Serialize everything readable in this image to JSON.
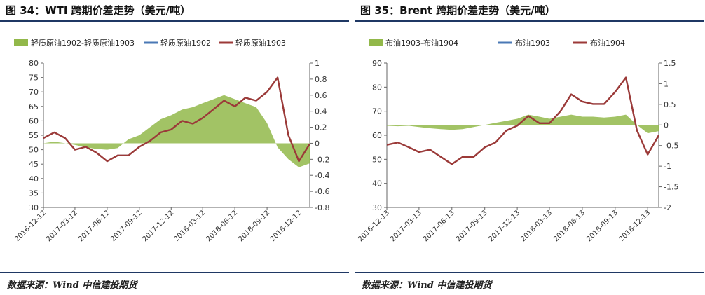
{
  "charts": [
    {
      "title": "图 34：WTI 跨期价差走势（美元/吨）",
      "source": "数据来源：Wind 中信建投期货",
      "colors": {
        "spread": "#92b84a",
        "near": "#4a78b5",
        "far": "#9c3a38"
      },
      "chart_data": {
        "type": "line",
        "x_dates": [
          "2016-12-12",
          "2017-01-12",
          "2017-02-12",
          "2017-03-12",
          "2017-04-12",
          "2017-05-12",
          "2017-06-12",
          "2017-07-12",
          "2017-08-12",
          "2017-09-12",
          "2017-10-12",
          "2017-11-12",
          "2017-12-12",
          "2018-01-12",
          "2018-02-12",
          "2018-03-12",
          "2018-04-12",
          "2018-05-12",
          "2018-06-12",
          "2018-07-12",
          "2018-08-12",
          "2018-09-12",
          "2018-10-12",
          "2018-11-12",
          "2018-12-12",
          "2019-01-12"
        ],
        "x_tick_labels": [
          "2016-12-12",
          "2017-03-12",
          "2017-06-12",
          "2017-09-12",
          "2017-12-12",
          "2018-03-12",
          "2018-06-12",
          "2018-09-12",
          "2018-12-12"
        ],
        "left_axis": {
          "ticks": [
            "30",
            "35",
            "40",
            "45",
            "50",
            "55",
            "60",
            "65",
            "70",
            "75",
            "80"
          ],
          "ylim": [
            30,
            80
          ]
        },
        "right_axis": {
          "ticks": [
            "-0.8",
            "-0.6",
            "-0.4",
            "-0.2",
            "0",
            "0.2",
            "0.4",
            "0.6",
            "0.8",
            "1"
          ],
          "ylim": [
            -0.8,
            1.0
          ]
        },
        "series": [
          {
            "name": "轻质原油1902-轻质原油1903",
            "kind": "area",
            "axis": "right",
            "values": [
              0.0,
              0.02,
              0.0,
              -0.02,
              -0.05,
              -0.07,
              -0.08,
              -0.06,
              0.05,
              0.1,
              0.2,
              0.3,
              0.35,
              0.42,
              0.45,
              0.5,
              0.55,
              0.6,
              0.55,
              0.5,
              0.45,
              0.25,
              -0.05,
              -0.2,
              -0.3,
              -0.25
            ]
          },
          {
            "name": "轻质原油1902",
            "kind": "line",
            "axis": "left",
            "values": [
              54,
              56,
              54,
              50,
              51,
              49,
              46,
              48,
              48,
              51,
              53,
              56,
              57,
              60,
              59,
              61,
              64,
              67,
              65,
              68,
              67,
              70,
              75,
              55,
              46,
              52
            ]
          },
          {
            "name": "轻质原油1903",
            "kind": "line",
            "axis": "left",
            "values": [
              54,
              56,
              54,
              50,
              51,
              49,
              46,
              48,
              48,
              51,
              53,
              56,
              57,
              60,
              59,
              61,
              64,
              67,
              65,
              68,
              67,
              70,
              75,
              55,
              46,
              52
            ]
          }
        ]
      }
    },
    {
      "title": "图 35：Brent 跨期价差走势（美元/吨）",
      "source": "数据来源：Wind 中信建投期货",
      "colors": {
        "spread": "#92b84a",
        "near": "#4a78b5",
        "far": "#9c3a38"
      },
      "chart_data": {
        "type": "line",
        "x_dates": [
          "2016-12-13",
          "2017-01-13",
          "2017-02-13",
          "2017-03-13",
          "2017-04-13",
          "2017-05-13",
          "2017-06-13",
          "2017-07-13",
          "2017-08-13",
          "2017-09-13",
          "2017-10-13",
          "2017-11-13",
          "2017-12-13",
          "2018-01-13",
          "2018-02-13",
          "2018-03-13",
          "2018-04-13",
          "2018-05-13",
          "2018-06-13",
          "2018-07-13",
          "2018-08-13",
          "2018-09-13",
          "2018-10-13",
          "2018-11-13",
          "2018-12-13",
          "2019-01-13"
        ],
        "x_tick_labels": [
          "2016-12-13",
          "2017-03-13",
          "2017-06-13",
          "2017-09-13",
          "2017-12-13",
          "2018-03-13",
          "2018-06-13",
          "2018-09-13",
          "2018-12-13"
        ],
        "left_axis": {
          "ticks": [
            "30",
            "40",
            "50",
            "60",
            "70",
            "80",
            "90"
          ],
          "ylim": [
            30,
            90
          ]
        },
        "right_axis": {
          "ticks": [
            "-2",
            "-1.5",
            "-1",
            "-0.5",
            "0",
            "0.5",
            "1",
            "1.5"
          ],
          "ylim": [
            -2.0,
            1.5
          ]
        },
        "series": [
          {
            "name": "布油1903-布油1904",
            "kind": "area",
            "axis": "right",
            "values": [
              -0.02,
              -0.03,
              -0.02,
              -0.05,
              -0.08,
              -0.1,
              -0.12,
              -0.1,
              -0.05,
              0.0,
              0.05,
              0.1,
              0.15,
              0.25,
              0.2,
              0.15,
              0.2,
              0.25,
              0.2,
              0.2,
              0.18,
              0.2,
              0.25,
              0.0,
              -0.2,
              -0.15
            ]
          },
          {
            "name": "布油1903",
            "kind": "line",
            "axis": "left",
            "values": [
              56,
              57,
              55,
              53,
              54,
              51,
              48,
              51,
              51,
              55,
              57,
              62,
              64,
              68,
              65,
              65,
              70,
              77,
              74,
              73,
              73,
              78,
              84,
              62,
              52,
              60
            ]
          },
          {
            "name": "布油1904",
            "kind": "line",
            "axis": "left",
            "values": [
              56,
              57,
              55,
              53,
              54,
              51,
              48,
              51,
              51,
              55,
              57,
              62,
              64,
              68,
              65,
              65,
              70,
              77,
              74,
              73,
              73,
              78,
              84,
              62,
              52,
              60
            ]
          }
        ]
      }
    }
  ]
}
